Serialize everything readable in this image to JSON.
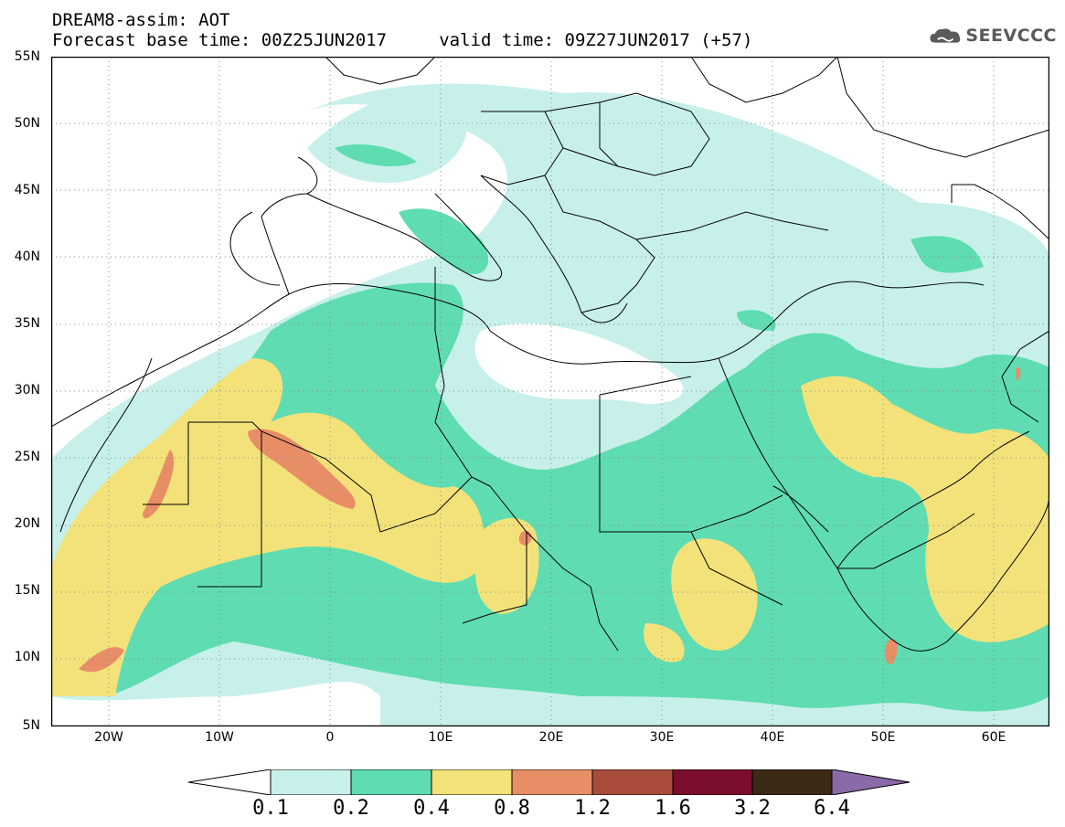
{
  "header": {
    "line1": "DREAM8-assim: AOT",
    "line2": "Forecast base time: 00Z25JUN2017     valid time: 09Z27JUN2017 (+57)"
  },
  "logo": {
    "text": "SEEVCCC",
    "icon": "cloud-icon"
  },
  "map": {
    "lat_labels": [
      "55N",
      "50N",
      "45N",
      "40N",
      "35N",
      "30N",
      "25N",
      "20N",
      "15N",
      "10N",
      "5N"
    ],
    "lon_labels": [
      "20W",
      "10W",
      "0",
      "10E",
      "20E",
      "30E",
      "40E",
      "50E",
      "60E"
    ],
    "lon_range": [
      -25,
      65
    ],
    "lat_range": [
      5,
      55
    ],
    "grid": "dotted",
    "variable": "AOT"
  },
  "colorbar": {
    "labels": [
      "0.1",
      "0.2",
      "0.4",
      "0.8",
      "1.2",
      "1.6",
      "3.2",
      "6.4"
    ],
    "colors": [
      "#ffffff",
      "#c7f0eb",
      "#5fdcb2",
      "#f3e27a",
      "#e88e67",
      "#a94c3c",
      "#7a0e2c",
      "#3b2a16",
      "#8a6aa8"
    ]
  },
  "colors": {
    "c1": "#c7f0eb",
    "c2": "#5fdcb2",
    "c3": "#f3e27a",
    "c4": "#e88e67"
  }
}
